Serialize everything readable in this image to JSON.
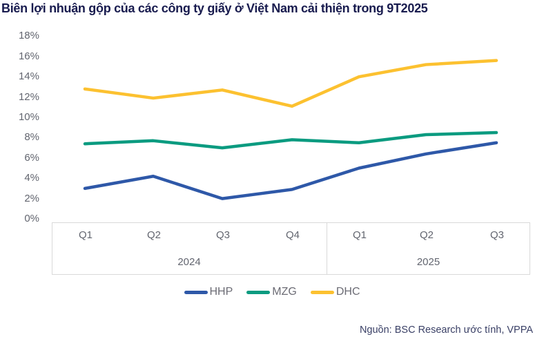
{
  "title": "Biên lợi nhuận gộp của các công ty giấy ở Việt Nam cải thiện trong 9T2025",
  "source": "Nguồn: BSC Research ước tính, VPPA",
  "chart_data": {
    "type": "line",
    "title": "Biên lợi nhuận gộp của các công ty giấy ở Việt Nam cải thiện trong 9T2025",
    "categories": [
      "Q1",
      "Q2",
      "Q3",
      "Q4",
      "Q1",
      "Q2",
      "Q3"
    ],
    "category_groups": [
      {
        "label": "2024",
        "span": 4
      },
      {
        "label": "2025",
        "span": 3
      }
    ],
    "y_ticks": [
      "18%",
      "16%",
      "14%",
      "12%",
      "10%",
      "8%",
      "6%",
      "4%",
      "2%",
      "0%"
    ],
    "ylim": [
      0,
      18
    ],
    "unit": "%",
    "grid": false,
    "legend_position": "bottom",
    "series": [
      {
        "name": "HHP",
        "color": "#2e58a8",
        "values": [
          3.0,
          4.2,
          2.0,
          2.9,
          5.0,
          6.4,
          7.5
        ]
      },
      {
        "name": "MZG",
        "color": "#0b9b80",
        "values": [
          7.4,
          7.7,
          7.0,
          7.8,
          7.5,
          8.3,
          8.5
        ]
      },
      {
        "name": "DHC",
        "color": "#fcc130",
        "values": [
          12.8,
          11.9,
          12.7,
          11.1,
          14.0,
          15.2,
          15.6
        ]
      }
    ]
  },
  "colors": {
    "title": "#191c4f",
    "axis_text": "#62656f",
    "axis_border": "#d9d9d9",
    "legend_text": "#6b6b74",
    "source_text": "#3a4066"
  }
}
